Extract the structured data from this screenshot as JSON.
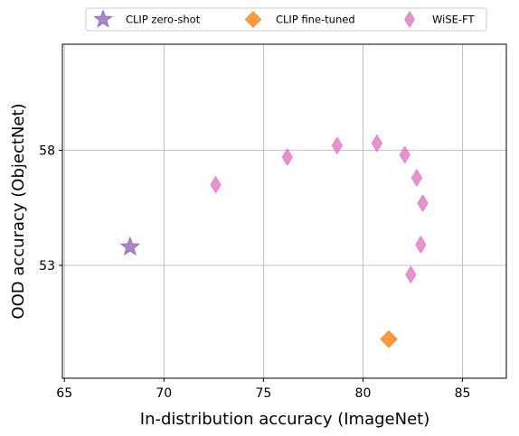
{
  "chart_data": {
    "type": "scatter",
    "xlabel": "In-distribution accuracy (ImageNet)",
    "ylabel": "OOD accuracy (ObjectNet)",
    "xlim": [
      64.9,
      87.2
    ],
    "ylim": [
      48.1,
      62.6
    ],
    "xticks": [
      65,
      70,
      75,
      80,
      85
    ],
    "yticks": [
      53,
      58
    ],
    "grid": true,
    "legend": {
      "placement": "top-center, above plot"
    },
    "series": [
      {
        "name": "CLIP zero-shot",
        "marker": "star",
        "color": "#9467bd",
        "points": [
          {
            "x": 68.3,
            "y": 53.8
          }
        ]
      },
      {
        "name": "CLIP fine-tuned",
        "marker": "diamond",
        "color": "#ff7f0e",
        "points": [
          {
            "x": 81.3,
            "y": 49.8
          }
        ]
      },
      {
        "name": "WiSE-FT",
        "marker": "thin-diamond",
        "color": "#e377c2",
        "points": [
          {
            "x": 72.6,
            "y": 56.5
          },
          {
            "x": 76.2,
            "y": 57.7
          },
          {
            "x": 78.7,
            "y": 58.2
          },
          {
            "x": 80.7,
            "y": 58.3
          },
          {
            "x": 82.1,
            "y": 57.8
          },
          {
            "x": 82.7,
            "y": 56.8
          },
          {
            "x": 83.0,
            "y": 55.7
          },
          {
            "x": 82.9,
            "y": 53.9
          },
          {
            "x": 82.4,
            "y": 52.6
          }
        ]
      }
    ]
  }
}
